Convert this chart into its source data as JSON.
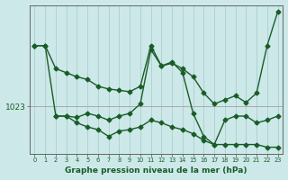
{
  "title": "",
  "xlabel": "Graphe pression niveau de la mer (hPa)",
  "ylabel": "",
  "bg_color": "#cce8e8",
  "line_color": "#1a5c28",
  "grid_color": "#aecece",
  "hline_color": "#aaaaaa",
  "marker": "D",
  "markersize": 2.5,
  "linewidth": 1.0,
  "xlim": [
    -0.5,
    23.5
  ],
  "ylim": [
    1019.5,
    1030.5
  ],
  "ytick_val": 1023,
  "ytick_label": "1023",
  "xticks": [
    0,
    1,
    2,
    3,
    4,
    5,
    6,
    7,
    8,
    9,
    10,
    11,
    12,
    13,
    14,
    15,
    16,
    17,
    18,
    19,
    20,
    21,
    22,
    23
  ],
  "series": [
    {
      "x": [
        0,
        1,
        2,
        3,
        4,
        5,
        6,
        7,
        8,
        9,
        10,
        11,
        12,
        13,
        14,
        15,
        16,
        17,
        18,
        19,
        20,
        21,
        22,
        23
      ],
      "y": [
        1027.5,
        1027.5,
        1025.8,
        1025.5,
        1025.2,
        1025.0,
        1024.5,
        1024.3,
        1024.2,
        1024.1,
        1024.5,
        1027.5,
        1026.0,
        1026.2,
        1025.8,
        1025.2,
        1024.0,
        1023.2,
        1023.5,
        1023.8,
        1023.3,
        1024.0,
        1027.5,
        1030.0
      ]
    },
    {
      "x": [
        0,
        1,
        2,
        3,
        4,
        5,
        6,
        7,
        8,
        9,
        10,
        11,
        12,
        13,
        14,
        15,
        16,
        17,
        18,
        19,
        20,
        21,
        22,
        23
      ],
      "y": [
        1027.5,
        1027.5,
        1022.3,
        1022.3,
        1022.2,
        1022.5,
        1022.3,
        1022.0,
        1022.3,
        1022.5,
        1023.2,
        1027.2,
        1026.0,
        1026.3,
        1025.5,
        1022.5,
        1020.8,
        1020.2,
        1022.0,
        1022.3,
        1022.3,
        1021.8,
        1022.0,
        1022.3
      ]
    },
    {
      "x": [
        2,
        3,
        4,
        5,
        6,
        7,
        8,
        9,
        10,
        11,
        12,
        13,
        14,
        15,
        16,
        17,
        18,
        19,
        20,
        21,
        22,
        23
      ],
      "y": [
        1022.3,
        1022.3,
        1021.8,
        1021.5,
        1021.3,
        1020.8,
        1021.2,
        1021.3,
        1021.5,
        1022.0,
        1021.8,
        1021.5,
        1021.3,
        1021.0,
        1020.5,
        1020.2,
        1020.2,
        1020.2,
        1020.2,
        1020.2,
        1020.0,
        1020.0
      ]
    }
  ]
}
